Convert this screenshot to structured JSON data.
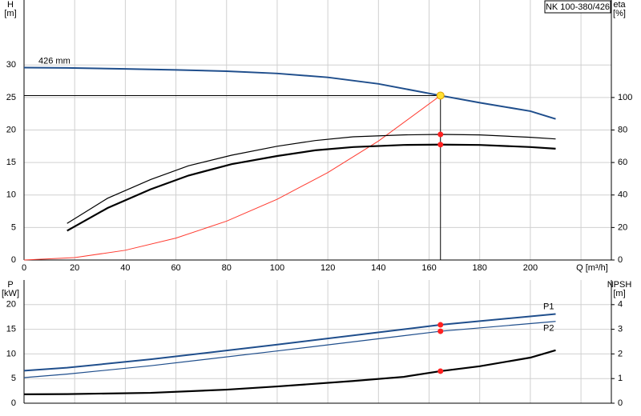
{
  "chart_data": [
    {
      "type": "line",
      "title": "NK 100-380/426",
      "ylabel": [
        "H",
        "[m]"
      ],
      "y2label": [
        "eta",
        "[%]"
      ],
      "xlim": [
        0,
        232
      ],
      "ylim": [
        0,
        40
      ],
      "y2lim": [
        0,
        160
      ],
      "xticks": [
        0,
        20,
        40,
        60,
        80,
        100,
        120,
        140,
        160,
        180,
        200,
        {
          "value": 220,
          "label": "Q [m³/h]"
        }
      ],
      "yticks": [
        0,
        5,
        10,
        15,
        20,
        25,
        30
      ],
      "y2ticks": [
        0,
        20,
        40,
        60,
        80,
        100
      ],
      "grid": true,
      "operating_point": {
        "x": 164.5,
        "y": 25.3
      },
      "series": [
        {
          "name": "426 mm",
          "color": "#1f4e8c",
          "width": 2,
          "markers": false,
          "x": [
            0,
            17,
            40,
            60,
            80,
            100,
            120,
            140,
            164.5,
            180,
            200,
            210
          ],
          "values": [
            29.6,
            29.55,
            29.4,
            29.25,
            29.05,
            28.7,
            28.1,
            27.1,
            25.3,
            24.2,
            22.9,
            21.7
          ]
        },
        {
          "color": "#ff3b30",
          "width": 1,
          "markers": false,
          "x": [
            0,
            20,
            40,
            60,
            80,
            100,
            120,
            140,
            164.5
          ],
          "values": [
            0,
            0.37,
            1.5,
            3.37,
            5.98,
            9.35,
            13.46,
            18.3,
            25.3
          ]
        },
        {
          "color": "#000000",
          "width": 1.2,
          "axis": "y2",
          "markers": true,
          "x": [
            17,
            33,
            50,
            65,
            82,
            100,
            115,
            130,
            150,
            164.5,
            180,
            200,
            210
          ],
          "values": [
            22.5,
            38,
            49.5,
            58,
            64.5,
            70,
            73.5,
            75.8,
            77,
            77.3,
            77,
            75.5,
            74.5
          ]
        },
        {
          "color": "#000000",
          "width": 2.2,
          "axis": "y2",
          "markers": true,
          "x": [
            17,
            33,
            50,
            65,
            82,
            100,
            115,
            130,
            150,
            164.5,
            180,
            200,
            210
          ],
          "values": [
            18,
            32,
            43.5,
            52,
            59,
            64,
            67.5,
            69.5,
            70.8,
            71,
            70.8,
            69.5,
            68.5
          ]
        }
      ]
    },
    {
      "type": "line",
      "ylabel": [
        "P",
        "[kW]"
      ],
      "y2label": [
        "NPSH",
        "[m]"
      ],
      "ylim": [
        0,
        25
      ],
      "y2lim": [
        0,
        5
      ],
      "yticks": [
        0,
        5,
        10,
        15,
        20
      ],
      "y2ticks": [
        0,
        1,
        2,
        3,
        4
      ],
      "grid": true,
      "series": [
        {
          "name": "P1",
          "color": "#1f4e8c",
          "width": 2,
          "markers": true,
          "x": [
            0,
            17,
            50,
            100,
            150,
            164.5,
            210
          ],
          "values": [
            6.6,
            7.2,
            8.9,
            11.9,
            15.0,
            15.9,
            18.1
          ]
        },
        {
          "name": "P2",
          "color": "#1f4e8c",
          "width": 1.2,
          "markers": true,
          "x": [
            0,
            17,
            50,
            100,
            150,
            164.5,
            210
          ],
          "values": [
            5.2,
            5.9,
            7.6,
            10.6,
            13.7,
            14.6,
            16.6
          ]
        },
        {
          "color": "#000000",
          "width": 2.2,
          "axis": "y2",
          "markers": true,
          "x": [
            0,
            17,
            50,
            80,
            100,
            130,
            150,
            164.5,
            180,
            200,
            210
          ],
          "values": [
            0.36,
            0.37,
            0.42,
            0.55,
            0.68,
            0.9,
            1.07,
            1.3,
            1.5,
            1.85,
            2.15
          ]
        }
      ]
    }
  ]
}
